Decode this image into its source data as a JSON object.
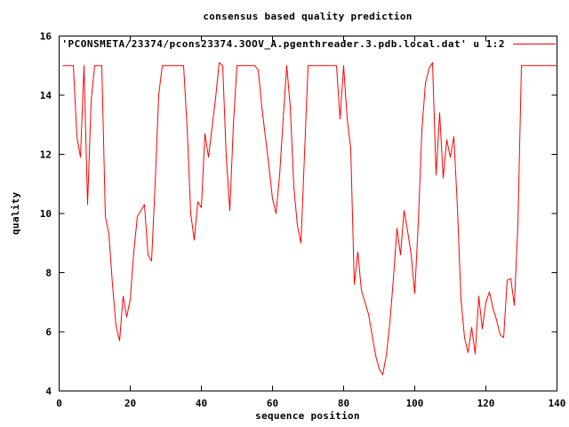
{
  "title": "consensus based quality prediction",
  "legend": {
    "label": "'PCONSMETA/23374/pcons23374.3OOV_A.pgenthreader.3.pdb.local.dat' u 1:2",
    "line_color": "#ff0000"
  },
  "colors": {
    "background": "#ffffff",
    "text": "#000000",
    "border": "#000000",
    "series_red": "#ff0000"
  },
  "chart_data": {
    "type": "line",
    "title": "consensus based quality prediction",
    "xlabel": "sequence position",
    "ylabel": "quality",
    "xlim": [
      0,
      140
    ],
    "ylim": [
      4,
      16
    ],
    "xticks": [
      0,
      20,
      40,
      60,
      80,
      100,
      120,
      140
    ],
    "yticks": [
      4,
      6,
      8,
      10,
      12,
      14,
      16
    ],
    "grid": false,
    "legend_position": "top-right-inside",
    "series": [
      {
        "name": "'PCONSMETA/23374/pcons23374.3OOV_A.pgenthreader.3.pdb.local.dat' u 1:2",
        "color": "#ff0000",
        "x": [
          1,
          2,
          3,
          4,
          5,
          6,
          7,
          8,
          9,
          10,
          11,
          12,
          13,
          14,
          15,
          16,
          17,
          18,
          19,
          20,
          21,
          22,
          23,
          24,
          25,
          26,
          27,
          28,
          29,
          30,
          31,
          32,
          33,
          34,
          35,
          36,
          37,
          38,
          39,
          40,
          41,
          42,
          43,
          44,
          45,
          46,
          47,
          48,
          49,
          50,
          51,
          52,
          53,
          54,
          55,
          56,
          57,
          58,
          59,
          60,
          61,
          62,
          63,
          64,
          65,
          66,
          67,
          68,
          69,
          70,
          71,
          72,
          73,
          74,
          75,
          76,
          77,
          78,
          79,
          80,
          81,
          82,
          83,
          84,
          85,
          86,
          87,
          88,
          89,
          90,
          91,
          92,
          93,
          94,
          95,
          96,
          97,
          98,
          99,
          100,
          101,
          102,
          103,
          104,
          105,
          106,
          107,
          108,
          109,
          110,
          111,
          112,
          113,
          114,
          115,
          116,
          117,
          118,
          119,
          120,
          121,
          122,
          123,
          124,
          125,
          126,
          127,
          128,
          129,
          130,
          131,
          132,
          133,
          134,
          135,
          136,
          137,
          138,
          139,
          140
        ],
        "y": [
          15,
          15,
          15,
          15,
          12.6,
          11.9,
          15,
          10.3,
          13.8,
          15,
          15,
          15,
          9.9,
          9.3,
          7.6,
          6.2,
          5.7,
          7.2,
          6.5,
          7.1,
          8.7,
          9.9,
          10.1,
          10.3,
          8.6,
          8.4,
          11.0,
          14.0,
          15,
          15,
          15,
          15,
          15,
          15,
          15,
          12.9,
          10.0,
          9.1,
          10.4,
          10.2,
          12.7,
          11.9,
          12.9,
          13.9,
          15.1,
          15.0,
          11.9,
          10.1,
          13.0,
          15,
          15,
          15,
          15,
          15,
          15,
          14.85,
          13.6,
          12.6,
          11.6,
          10.5,
          10.0,
          11.3,
          13.2,
          15.0,
          13.6,
          10.9,
          9.6,
          9.0,
          12.0,
          15,
          15,
          15,
          15,
          15,
          15,
          15,
          15,
          15,
          13.2,
          15,
          13.2,
          12.2,
          7.6,
          8.7,
          7.4,
          7.0,
          6.6,
          5.9,
          5.2,
          4.75,
          4.55,
          5.2,
          6.3,
          7.8,
          9.5,
          8.6,
          10.1,
          9.4,
          8.6,
          7.3,
          9.7,
          12.8,
          14.4,
          14.9,
          15.1,
          11.3,
          13.4,
          11.2,
          12.5,
          11.9,
          12.6,
          10.2,
          7.1,
          5.8,
          5.3,
          6.15,
          5.25,
          7.2,
          6.1,
          7.0,
          7.35,
          6.8,
          6.4,
          5.9,
          5.8,
          7.75,
          7.8,
          6.9,
          9.6,
          15,
          15,
          15,
          15,
          15,
          15,
          15,
          15,
          15,
          15,
          15
        ]
      }
    ]
  }
}
